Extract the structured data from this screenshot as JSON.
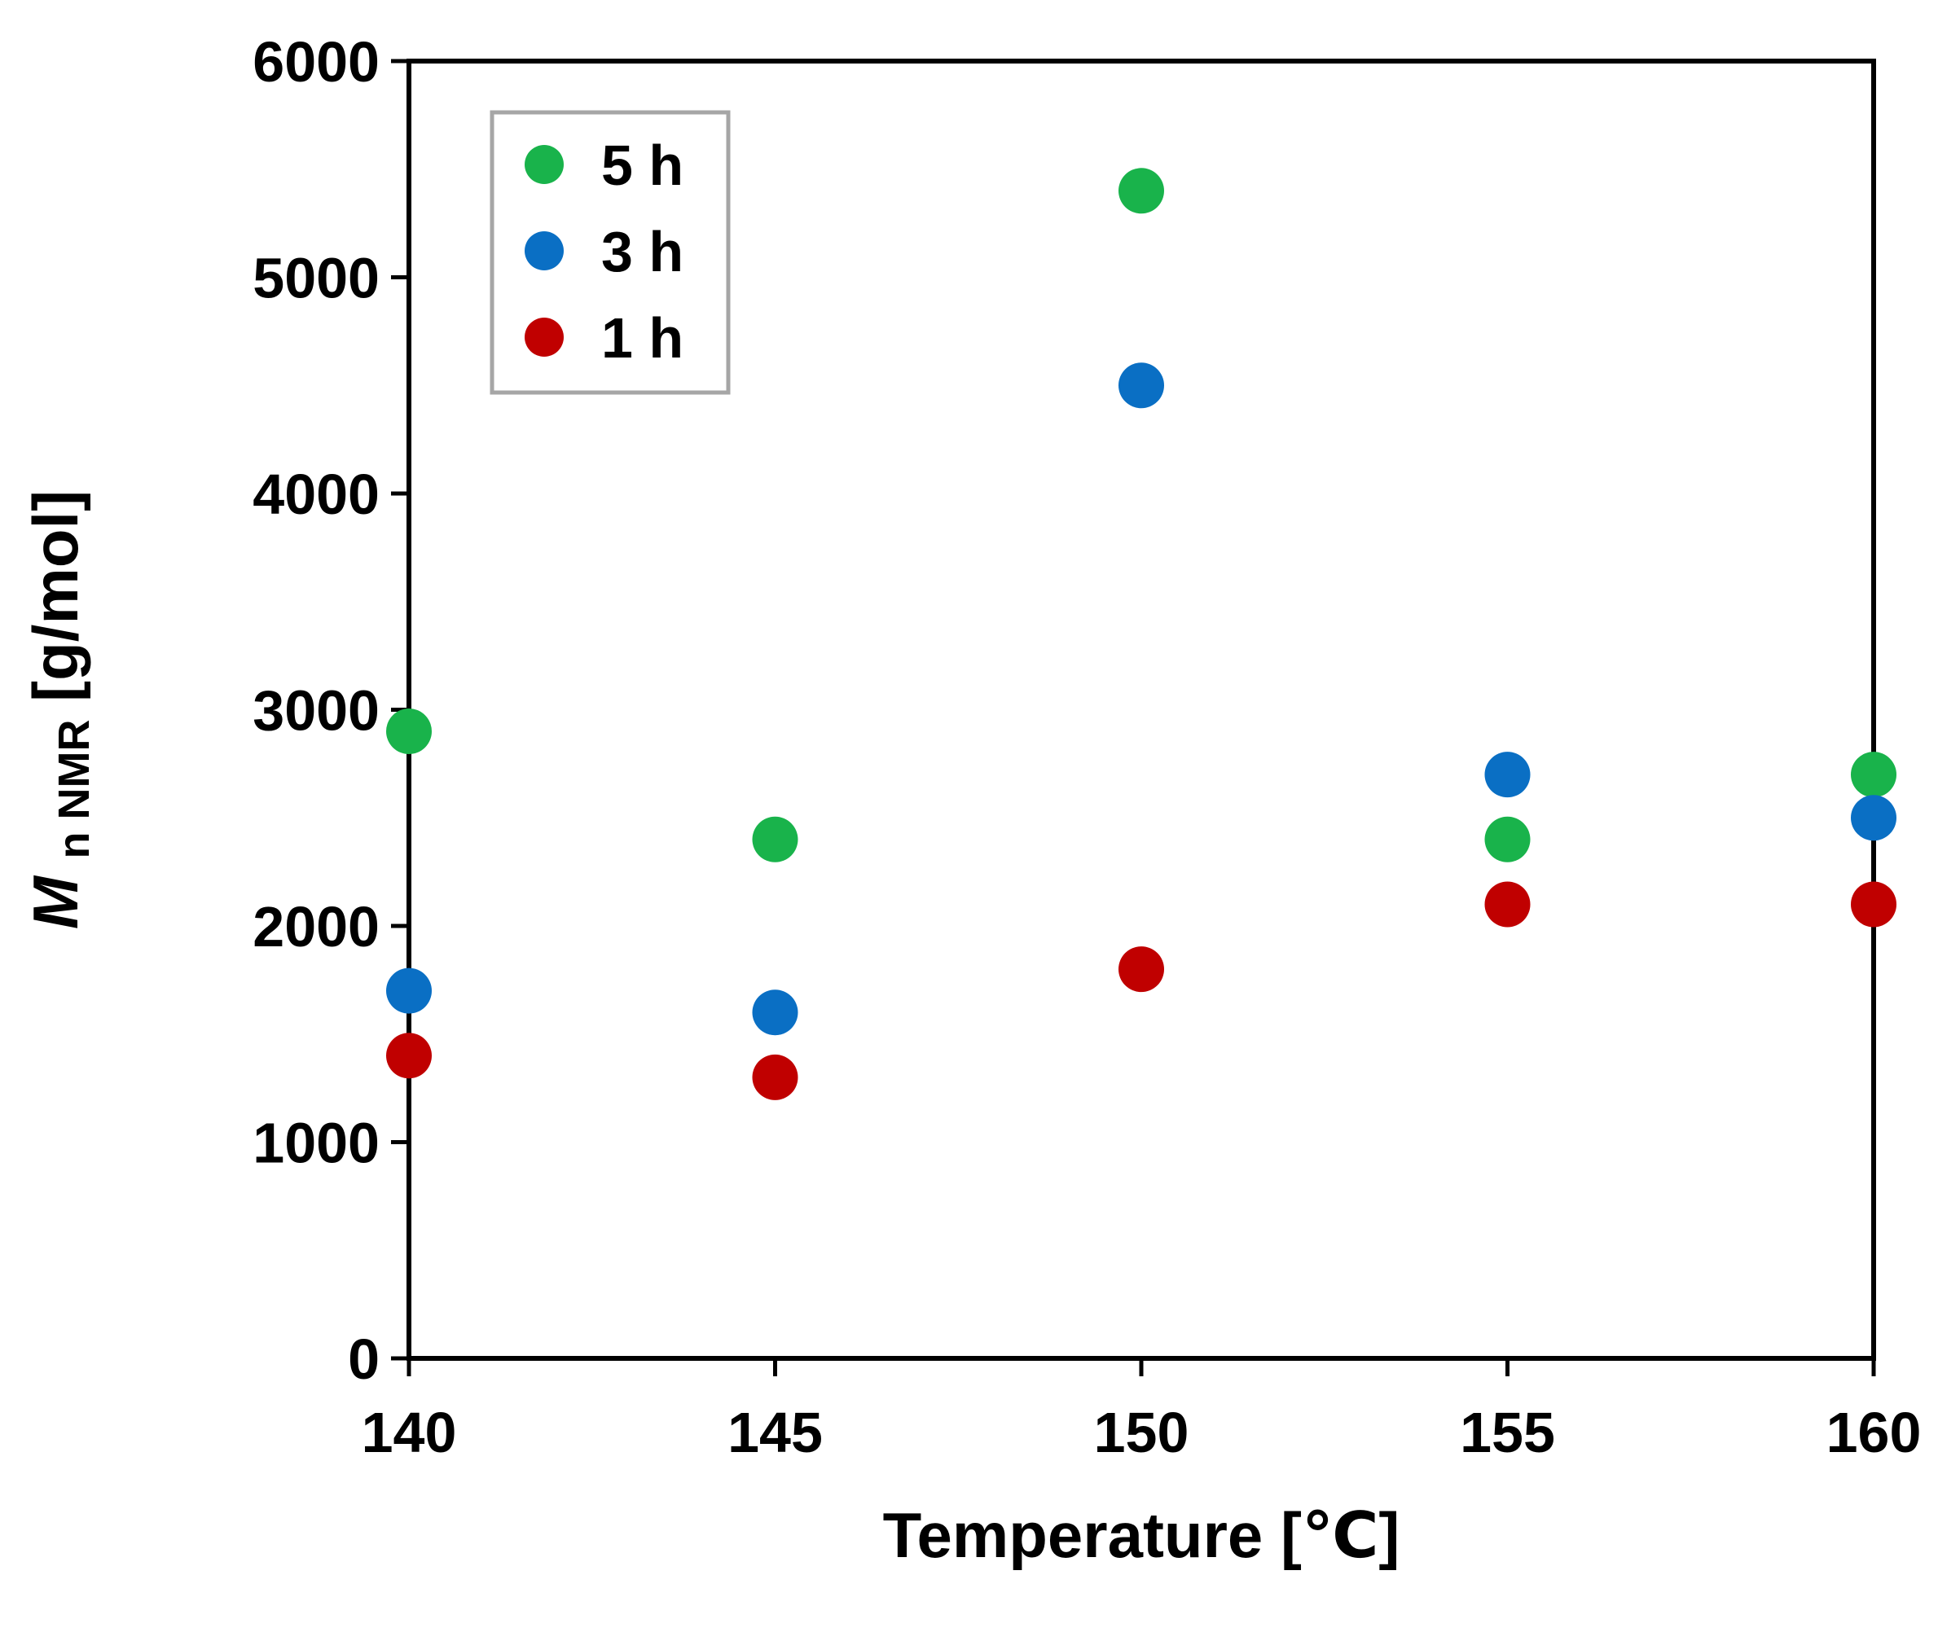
{
  "chart_data": {
    "type": "scatter",
    "xlabel": "Temperature [℃]",
    "ylabel": {
      "main": "M",
      "sub": "n NMR",
      "unit": " [g/mol]"
    },
    "xlim": [
      140,
      160
    ],
    "ylim": [
      0,
      6000
    ],
    "x_ticks": [
      140,
      145,
      150,
      155,
      160
    ],
    "y_ticks": [
      0,
      1000,
      2000,
      3000,
      4000,
      5000,
      6000
    ],
    "grid": false,
    "legend_position": "top-left",
    "series": [
      {
        "name": "5 h",
        "color": "#19b34b",
        "points": [
          [
            140,
            2900
          ],
          [
            145,
            2400
          ],
          [
            150,
            5400
          ],
          [
            155,
            2400
          ],
          [
            160,
            2700
          ]
        ]
      },
      {
        "name": "3 h",
        "color": "#0a6fc4",
        "points": [
          [
            140,
            1700
          ],
          [
            145,
            1600
          ],
          [
            150,
            4500
          ],
          [
            155,
            2700
          ],
          [
            160,
            2500
          ]
        ]
      },
      {
        "name": "1 h",
        "color": "#c00000",
        "points": [
          [
            140,
            1400
          ],
          [
            145,
            1300
          ],
          [
            150,
            1800
          ],
          [
            155,
            2100
          ],
          [
            160,
            2100
          ]
        ]
      }
    ]
  }
}
